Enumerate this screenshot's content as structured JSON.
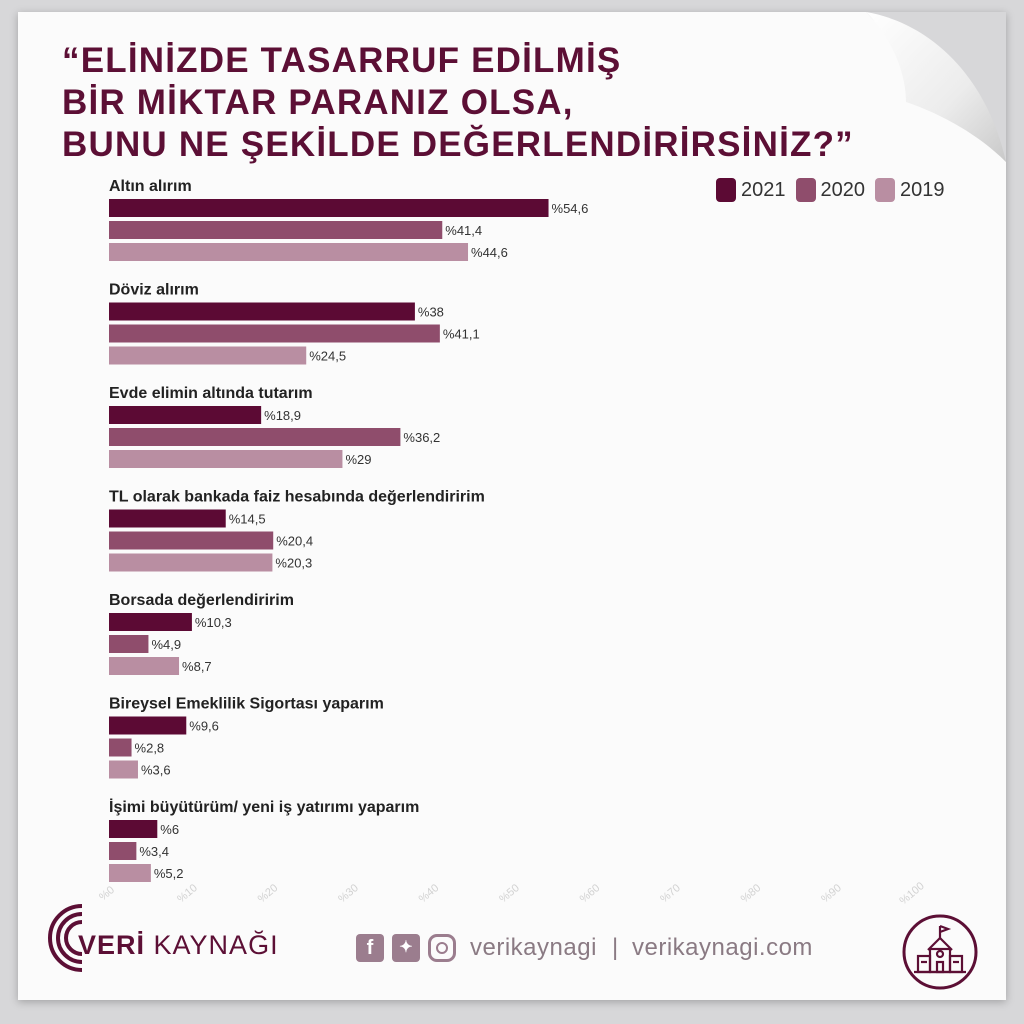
{
  "title_lines": [
    "“ELİNİZDE TASARRUF EDİLMİŞ",
    "BİR MİKTAR PARANIZ OLSA,",
    "BUNU NE ŞEKİLDE DEĞERLENDİRİRSİNİZ?”"
  ],
  "colors": {
    "s2021": "#5c0a34",
    "s2020": "#8f4d6c",
    "s2019": "#b98ea2",
    "title": "#5c0f35"
  },
  "chart_data": {
    "type": "bar",
    "orientation": "horizontal",
    "categories": [
      "Altın alırım",
      "Döviz alırım",
      "Evde elimin altında tutarım",
      "TL olarak bankada faiz hesabında değerlendiririm",
      "Borsada değerlendiririm",
      "Bireysel Emeklilik Sigortası yaparım",
      "İşimi büyütürüm/ yeni iş yatırımı yaparım"
    ],
    "series": [
      {
        "name": "2021",
        "values": [
          54.6,
          38,
          18.9,
          14.5,
          10.3,
          9.6,
          6
        ],
        "labels": [
          "%54,6",
          "%38",
          "%18,9",
          "%14,5",
          "%10,3",
          "%9,6",
          "%6"
        ]
      },
      {
        "name": "2020",
        "values": [
          41.4,
          41.1,
          36.2,
          20.4,
          4.9,
          2.8,
          3.4
        ],
        "labels": [
          "%41,4",
          "%41,1",
          "%36,2",
          "%20,4",
          "%4,9",
          "%2,8",
          "%3,4"
        ]
      },
      {
        "name": "2019",
        "values": [
          44.6,
          24.5,
          29,
          20.3,
          8.7,
          3.6,
          5.2
        ],
        "labels": [
          "%44,6",
          "%24,5",
          "%29",
          "%20,3",
          "%8,7",
          "%3,6",
          "%5,2"
        ]
      }
    ],
    "xlim": [
      0,
      100
    ],
    "ticks": [
      "%0",
      "%10",
      "%20",
      "%30",
      "%40",
      "%50",
      "%60",
      "%70",
      "%80",
      "%90",
      "%100"
    ],
    "legend_position": "top-right",
    "grid": false
  },
  "footer": {
    "brand_bold": "VERİ",
    "brand_rest": " KAYNAĞI",
    "handle": "verikaynagi",
    "separator": "|",
    "website": "verikaynagi.com"
  },
  "icons": [
    "facebook-icon",
    "twitter-icon",
    "instagram-icon",
    "school-icon"
  ]
}
